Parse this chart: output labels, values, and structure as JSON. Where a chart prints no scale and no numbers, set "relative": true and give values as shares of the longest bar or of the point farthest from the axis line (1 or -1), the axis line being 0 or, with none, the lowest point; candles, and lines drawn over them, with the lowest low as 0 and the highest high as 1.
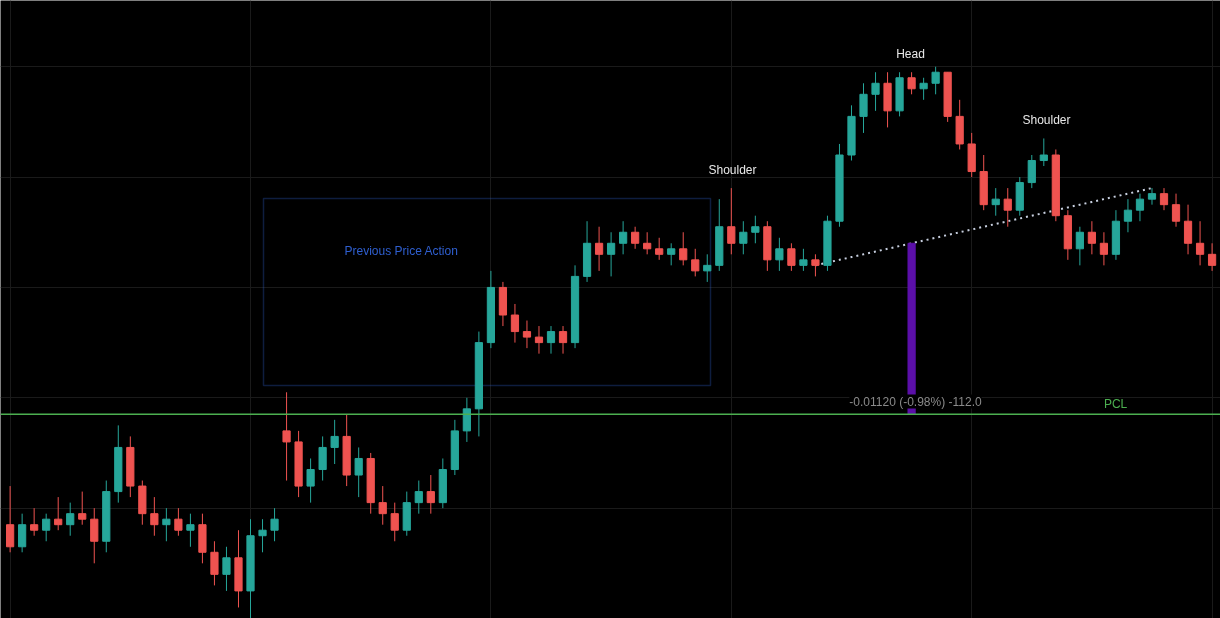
{
  "chart_data": {
    "type": "candlestick",
    "relative": true,
    "tick_labels": false,
    "grid": true,
    "categories": [
      null,
      null,
      null,
      null,
      null,
      null,
      null,
      null,
      null,
      null,
      null,
      null,
      null,
      null,
      null,
      null,
      null,
      null,
      null,
      null,
      null,
      null,
      null,
      null,
      null,
      null,
      null,
      null,
      null,
      null,
      null,
      null,
      null,
      null,
      null,
      null,
      null,
      null,
      null,
      null,
      null,
      null,
      null,
      null,
      null,
      null,
      null,
      null,
      null,
      null,
      null,
      null,
      null,
      null,
      null,
      null,
      null,
      null,
      null,
      null,
      null,
      null,
      null,
      null,
      null,
      null,
      null,
      null,
      null,
      null,
      null,
      null,
      null,
      null,
      null,
      null,
      null,
      null,
      null,
      null,
      null,
      null,
      null,
      null,
      null,
      null,
      null,
      null,
      null,
      null,
      null,
      null,
      null,
      null,
      null,
      null,
      null,
      null,
      null,
      null,
      null
    ],
    "colors": [
      "#ef5350",
      "#26a69a",
      "#ef5350",
      "#26a69a",
      "#ef5350",
      "#26a69a",
      "#ef5350",
      "#ef5350",
      "#26a69a",
      "#26a69a",
      "#ef5350",
      "#ef5350",
      "#ef5350",
      "#26a69a",
      "#ef5350",
      "#26a69a",
      "#ef5350",
      "#ef5350",
      "#26a69a",
      "#ef5350",
      "#26a69a",
      "#26a69a",
      "#26a69a",
      "#ef5350",
      "#ef5350",
      "#26a69a",
      "#26a69a",
      "#26a69a",
      "#ef5350",
      "#26a69a",
      "#ef5350",
      "#ef5350",
      "#ef5350",
      "#26a69a",
      "#26a69a",
      "#ef5350",
      "#26a69a",
      "#26a69a",
      "#26a69a",
      "#26a69a",
      "#26a69a",
      "#ef5350",
      "#ef5350",
      "#ef5350",
      "#ef5350",
      "#26a69a",
      "#ef5350",
      "#26a69a",
      "#26a69a",
      "#ef5350",
      "#26a69a",
      "#26a69a",
      "#ef5350",
      "#ef5350",
      "#ef5350",
      "#26a69a",
      "#ef5350",
      "#ef5350",
      "#26a69a",
      "#26a69a",
      "#ef5350",
      "#26a69a",
      "#26a69a",
      "#ef5350",
      "#26a69a",
      "#ef5350",
      "#26a69a",
      "#ef5350",
      "#26a69a",
      "#26a69a",
      "#26a69a",
      "#26a69a",
      "#26a69a",
      "#ef5350",
      "#26a69a",
      "#ef5350",
      "#26a69a",
      "#26a69a",
      "#ef5350",
      "#ef5350",
      "#ef5350",
      "#ef5350",
      "#26a69a",
      "#ef5350",
      "#26a69a",
      "#26a69a",
      "#26a69a",
      "#ef5350",
      "#ef5350",
      "#26a69a",
      "#ef5350",
      "#ef5350",
      "#26a69a",
      "#26a69a",
      "#26a69a",
      "#26a69a",
      "#ef5350",
      "#ef5350",
      "#ef5350",
      "#ef5350",
      "#ef5350"
    ],
    "ohlc": [
      [
        0.17,
        0.24,
        0.12,
        0.13
      ],
      [
        0.13,
        0.19,
        0.12,
        0.17
      ],
      [
        0.17,
        0.2,
        0.15,
        0.16
      ],
      [
        0.16,
        0.19,
        0.14,
        0.18
      ],
      [
        0.18,
        0.22,
        0.16,
        0.17
      ],
      [
        0.17,
        0.21,
        0.15,
        0.19
      ],
      [
        0.19,
        0.23,
        0.17,
        0.18
      ],
      [
        0.18,
        0.2,
        0.1,
        0.14
      ],
      [
        0.14,
        0.25,
        0.12,
        0.23
      ],
      [
        0.23,
        0.35,
        0.21,
        0.31
      ],
      [
        0.31,
        0.33,
        0.22,
        0.24
      ],
      [
        0.24,
        0.25,
        0.17,
        0.19
      ],
      [
        0.19,
        0.22,
        0.15,
        0.17
      ],
      [
        0.17,
        0.2,
        0.14,
        0.18
      ],
      [
        0.18,
        0.2,
        0.15,
        0.16
      ],
      [
        0.16,
        0.19,
        0.13,
        0.17
      ],
      [
        0.17,
        0.19,
        0.1,
        0.12
      ],
      [
        0.12,
        0.14,
        0.06,
        0.08
      ],
      [
        0.08,
        0.13,
        0.05,
        0.11
      ],
      [
        0.11,
        0.16,
        0.02,
        0.05
      ],
      [
        0.05,
        0.18,
        0.0,
        0.15
      ],
      [
        0.15,
        0.18,
        0.12,
        0.16
      ],
      [
        0.16,
        0.2,
        0.14,
        0.18
      ],
      [
        0.34,
        0.41,
        0.25,
        0.32
      ],
      [
        0.32,
        0.34,
        0.22,
        0.24
      ],
      [
        0.24,
        0.29,
        0.21,
        0.27
      ],
      [
        0.27,
        0.33,
        0.25,
        0.31
      ],
      [
        0.31,
        0.36,
        0.28,
        0.33
      ],
      [
        0.33,
        0.37,
        0.24,
        0.26
      ],
      [
        0.26,
        0.31,
        0.22,
        0.29
      ],
      [
        0.29,
        0.3,
        0.19,
        0.21
      ],
      [
        0.21,
        0.24,
        0.17,
        0.19
      ],
      [
        0.19,
        0.21,
        0.14,
        0.16
      ],
      [
        0.16,
        0.23,
        0.15,
        0.21
      ],
      [
        0.21,
        0.25,
        0.19,
        0.23
      ],
      [
        0.23,
        0.26,
        0.19,
        0.21
      ],
      [
        0.21,
        0.29,
        0.2,
        0.27
      ],
      [
        0.27,
        0.36,
        0.26,
        0.34
      ],
      [
        0.34,
        0.4,
        0.32,
        0.38
      ],
      [
        0.38,
        0.52,
        0.33,
        0.5
      ],
      [
        0.5,
        0.63,
        0.49,
        0.6
      ],
      [
        0.6,
        0.61,
        0.53,
        0.55
      ],
      [
        0.55,
        0.57,
        0.5,
        0.52
      ],
      [
        0.52,
        0.54,
        0.49,
        0.51
      ],
      [
        0.51,
        0.53,
        0.48,
        0.5
      ],
      [
        0.5,
        0.53,
        0.48,
        0.52
      ],
      [
        0.52,
        0.53,
        0.48,
        0.5
      ],
      [
        0.5,
        0.64,
        0.49,
        0.62
      ],
      [
        0.62,
        0.72,
        0.61,
        0.68
      ],
      [
        0.68,
        0.71,
        0.63,
        0.66
      ],
      [
        0.66,
        0.7,
        0.62,
        0.68
      ],
      [
        0.68,
        0.72,
        0.66,
        0.7
      ],
      [
        0.7,
        0.71,
        0.67,
        0.68
      ],
      [
        0.68,
        0.7,
        0.66,
        0.67
      ],
      [
        0.67,
        0.69,
        0.65,
        0.66
      ],
      [
        0.66,
        0.68,
        0.64,
        0.67
      ],
      [
        0.67,
        0.7,
        0.64,
        0.65
      ],
      [
        0.65,
        0.67,
        0.62,
        0.63
      ],
      [
        0.63,
        0.66,
        0.61,
        0.64
      ],
      [
        0.64,
        0.76,
        0.63,
        0.71
      ],
      [
        0.71,
        0.78,
        0.66,
        0.68
      ],
      [
        0.68,
        0.72,
        0.66,
        0.7
      ],
      [
        0.7,
        0.73,
        0.68,
        0.71
      ],
      [
        0.71,
        0.72,
        0.63,
        0.65
      ],
      [
        0.65,
        0.69,
        0.63,
        0.67
      ],
      [
        0.67,
        0.68,
        0.63,
        0.64
      ],
      [
        0.64,
        0.67,
        0.63,
        0.65
      ],
      [
        0.65,
        0.66,
        0.62,
        0.64
      ],
      [
        0.64,
        0.73,
        0.63,
        0.72
      ],
      [
        0.72,
        0.86,
        0.71,
        0.84
      ],
      [
        0.84,
        0.93,
        0.83,
        0.91
      ],
      [
        0.91,
        0.97,
        0.88,
        0.95
      ],
      [
        0.95,
        0.99,
        0.92,
        0.97
      ],
      [
        0.97,
        0.99,
        0.89,
        0.92
      ],
      [
        0.92,
        0.99,
        0.91,
        0.98
      ],
      [
        0.98,
        0.99,
        0.95,
        0.96
      ],
      [
        0.96,
        0.98,
        0.94,
        0.97
      ],
      [
        0.97,
        1.0,
        0.95,
        0.99
      ],
      [
        0.99,
        0.99,
        0.9,
        0.91
      ],
      [
        0.91,
        0.94,
        0.85,
        0.86
      ],
      [
        0.86,
        0.88,
        0.8,
        0.81
      ],
      [
        0.81,
        0.84,
        0.74,
        0.75
      ],
      [
        0.75,
        0.78,
        0.73,
        0.76
      ],
      [
        0.76,
        0.78,
        0.71,
        0.74
      ],
      [
        0.74,
        0.8,
        0.73,
        0.79
      ],
      [
        0.79,
        0.84,
        0.78,
        0.83
      ],
      [
        0.83,
        0.87,
        0.82,
        0.84
      ],
      [
        0.84,
        0.85,
        0.72,
        0.73
      ],
      [
        0.73,
        0.74,
        0.65,
        0.67
      ],
      [
        0.67,
        0.71,
        0.64,
        0.7
      ],
      [
        0.7,
        0.72,
        0.66,
        0.68
      ],
      [
        0.68,
        0.7,
        0.64,
        0.66
      ],
      [
        0.66,
        0.74,
        0.65,
        0.72
      ],
      [
        0.72,
        0.76,
        0.7,
        0.74
      ],
      [
        0.74,
        0.77,
        0.72,
        0.76
      ],
      [
        0.76,
        0.78,
        0.75,
        0.77
      ],
      [
        0.77,
        0.78,
        0.74,
        0.75
      ],
      [
        0.75,
        0.77,
        0.71,
        0.72
      ],
      [
        0.72,
        0.75,
        0.66,
        0.68
      ],
      [
        0.68,
        0.72,
        0.64,
        0.66
      ],
      [
        0.66,
        0.68,
        0.63,
        0.64
      ]
    ],
    "series": [
      {
        "type": "line",
        "color": "#c8d0e0",
        "line_style": "dotted",
        "values": [
          null,
          null,
          null,
          null,
          null,
          null,
          null,
          null,
          null,
          null,
          null,
          null,
          null,
          null,
          null,
          null,
          null,
          null,
          null,
          null,
          null,
          null,
          null,
          null,
          null,
          null,
          null,
          null,
          null,
          null,
          null,
          null,
          null,
          null,
          null,
          null,
          null,
          null,
          null,
          null,
          null,
          null,
          null,
          null,
          null,
          null,
          null,
          null,
          null,
          null,
          null,
          null,
          null,
          null,
          null,
          null,
          null,
          null,
          null,
          null,
          null,
          null,
          null,
          null,
          null,
          null,
          null,
          0.64,
          null,
          0.65,
          0.655,
          0.66,
          0.665,
          0.67,
          0.675,
          0.68,
          0.685,
          0.69,
          0.695,
          0.7,
          0.705,
          0.71,
          0.715,
          0.72,
          0.725,
          0.73,
          0.735,
          null,
          0.745,
          0.75,
          0.755,
          0.76,
          0.765,
          0.77,
          0.775,
          0.78,
          null,
          null,
          null,
          null,
          null
        ]
      },
      {
        "type": "bar",
        "color": "#5b0fa8",
        "base": [
          null,
          null,
          null,
          null,
          null,
          null,
          null,
          null,
          null,
          null,
          null,
          null,
          null,
          null,
          null,
          null,
          null,
          null,
          null,
          null,
          null,
          null,
          null,
          null,
          null,
          null,
          null,
          null,
          null,
          null,
          null,
          null,
          null,
          null,
          null,
          null,
          null,
          null,
          null,
          null,
          null,
          null,
          null,
          null,
          null,
          null,
          null,
          null,
          null,
          null,
          null,
          null,
          null,
          null,
          null,
          null,
          null,
          null,
          null,
          null,
          null,
          null,
          null,
          null,
          null,
          null,
          null,
          null,
          null,
          null,
          null,
          null,
          null,
          null,
          null,
          0.37,
          null,
          null,
          null,
          null,
          null,
          null,
          null,
          null,
          null,
          null,
          null,
          null,
          null,
          null,
          null,
          null,
          null,
          null,
          null,
          null,
          null,
          null,
          null,
          null,
          null
        ],
        "values": [
          null,
          null,
          null,
          null,
          null,
          null,
          null,
          null,
          null,
          null,
          null,
          null,
          null,
          null,
          null,
          null,
          null,
          null,
          null,
          null,
          null,
          null,
          null,
          null,
          null,
          null,
          null,
          null,
          null,
          null,
          null,
          null,
          null,
          null,
          null,
          null,
          null,
          null,
          null,
          null,
          null,
          null,
          null,
          null,
          null,
          null,
          null,
          null,
          null,
          null,
          null,
          null,
          null,
          null,
          null,
          null,
          null,
          null,
          null,
          null,
          null,
          null,
          null,
          null,
          null,
          null,
          null,
          null,
          null,
          null,
          null,
          null,
          null,
          null,
          null,
          0.31,
          null,
          null,
          null,
          null,
          null,
          null,
          null,
          null,
          null,
          null,
          null,
          null,
          null,
          null,
          null,
          null,
          null,
          null,
          null,
          null,
          null,
          null,
          null,
          null,
          null
        ]
      }
    ],
    "ref_lines": [
      {
        "axis": "y",
        "value": 0.37,
        "label": "PCL",
        "color": "#4caf50"
      }
    ],
    "annotations": [
      "Previous Price Action",
      "Shoulder",
      "Head",
      "Shoulder",
      "-0.01120 (-0.98%) -112.0"
    ]
  }
}
